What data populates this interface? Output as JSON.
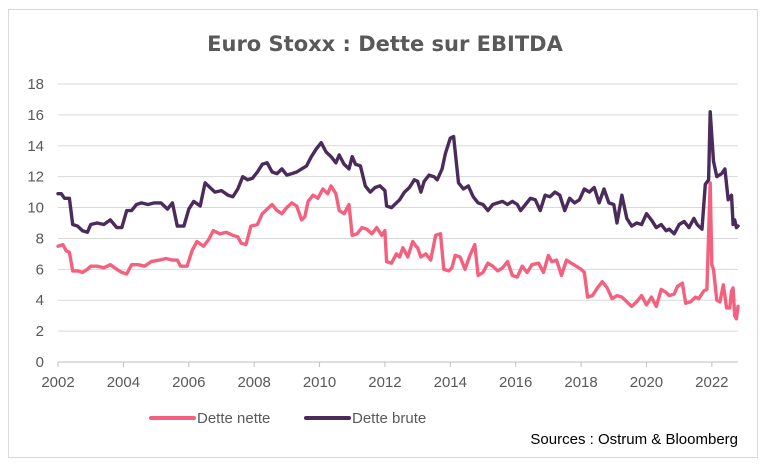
{
  "chart_data": {
    "type": "line",
    "title": "Euro Stoxx : Dette sur EBITDA",
    "xlabel": "",
    "ylabel": "",
    "xlim": [
      2002,
      2022.8
    ],
    "ylim": [
      0,
      18
    ],
    "x_ticks": [
      "2002",
      "2004",
      "2006",
      "2008",
      "2010",
      "2012",
      "2014",
      "2016",
      "2018",
      "2020",
      "2022"
    ],
    "y_ticks": [
      "0",
      "2",
      "4",
      "6",
      "8",
      "10",
      "12",
      "14",
      "16",
      "18"
    ],
    "grid": "horizontal",
    "legend_position": "bottom-left",
    "source": "Sources : Ostrum &  Bloomberg",
    "series": [
      {
        "name": "Dette nette",
        "color": "#f4617e",
        "points": [
          [
            2002.0,
            7.5
          ],
          [
            2002.15,
            7.6
          ],
          [
            2002.25,
            7.2
          ],
          [
            2002.35,
            7.1
          ],
          [
            2002.45,
            5.9
          ],
          [
            2002.6,
            5.9
          ],
          [
            2002.75,
            5.8
          ],
          [
            2002.9,
            6.0
          ],
          [
            2003.0,
            6.2
          ],
          [
            2003.2,
            6.2
          ],
          [
            2003.4,
            6.1
          ],
          [
            2003.6,
            6.3
          ],
          [
            2003.8,
            6.0
          ],
          [
            2003.95,
            5.8
          ],
          [
            2004.1,
            5.7
          ],
          [
            2004.25,
            6.3
          ],
          [
            2004.45,
            6.3
          ],
          [
            2004.65,
            6.2
          ],
          [
            2004.85,
            6.5
          ],
          [
            2005.1,
            6.6
          ],
          [
            2005.3,
            6.7
          ],
          [
            2005.5,
            6.6
          ],
          [
            2005.65,
            6.6
          ],
          [
            2005.75,
            6.2
          ],
          [
            2005.95,
            6.2
          ],
          [
            2006.1,
            7.2
          ],
          [
            2006.25,
            7.8
          ],
          [
            2006.45,
            7.5
          ],
          [
            2006.6,
            7.9
          ],
          [
            2006.75,
            8.5
          ],
          [
            2006.95,
            8.3
          ],
          [
            2007.15,
            8.4
          ],
          [
            2007.35,
            8.2
          ],
          [
            2007.5,
            8.1
          ],
          [
            2007.6,
            7.7
          ],
          [
            2007.75,
            7.6
          ],
          [
            2007.9,
            8.8
          ],
          [
            2008.1,
            8.9
          ],
          [
            2008.25,
            9.6
          ],
          [
            2008.4,
            9.9
          ],
          [
            2008.55,
            10.2
          ],
          [
            2008.7,
            9.8
          ],
          [
            2008.85,
            9.6
          ],
          [
            2009.0,
            10.0
          ],
          [
            2009.15,
            10.3
          ],
          [
            2009.3,
            10.1
          ],
          [
            2009.45,
            9.2
          ],
          [
            2009.55,
            9.4
          ],
          [
            2009.65,
            10.4
          ],
          [
            2009.8,
            10.8
          ],
          [
            2009.95,
            10.6
          ],
          [
            2010.1,
            11.2
          ],
          [
            2010.25,
            10.9
          ],
          [
            2010.35,
            11.4
          ],
          [
            2010.5,
            10.9
          ],
          [
            2010.6,
            9.8
          ],
          [
            2010.75,
            9.6
          ],
          [
            2010.9,
            10.2
          ],
          [
            2011.0,
            8.2
          ],
          [
            2011.15,
            8.3
          ],
          [
            2011.3,
            8.7
          ],
          [
            2011.45,
            8.6
          ],
          [
            2011.6,
            8.3
          ],
          [
            2011.75,
            8.7
          ],
          [
            2011.9,
            8.2
          ],
          [
            2012.0,
            8.5
          ],
          [
            2012.05,
            6.5
          ],
          [
            2012.2,
            6.4
          ],
          [
            2012.35,
            7.0
          ],
          [
            2012.45,
            6.8
          ],
          [
            2012.55,
            7.4
          ],
          [
            2012.7,
            6.8
          ],
          [
            2012.85,
            7.8
          ],
          [
            2012.95,
            7.5
          ],
          [
            2013.0,
            7.4
          ],
          [
            2013.1,
            6.8
          ],
          [
            2013.25,
            7.0
          ],
          [
            2013.4,
            6.6
          ],
          [
            2013.55,
            8.2
          ],
          [
            2013.7,
            8.3
          ],
          [
            2013.8,
            6.0
          ],
          [
            2013.95,
            5.9
          ],
          [
            2014.05,
            6.1
          ],
          [
            2014.15,
            6.9
          ],
          [
            2014.3,
            6.8
          ],
          [
            2014.45,
            6.0
          ],
          [
            2014.6,
            6.9
          ],
          [
            2014.75,
            7.6
          ],
          [
            2014.85,
            5.6
          ],
          [
            2015.0,
            5.8
          ],
          [
            2015.15,
            6.4
          ],
          [
            2015.3,
            6.2
          ],
          [
            2015.45,
            5.9
          ],
          [
            2015.6,
            6.1
          ],
          [
            2015.75,
            6.5
          ],
          [
            2015.9,
            5.6
          ],
          [
            2016.05,
            5.5
          ],
          [
            2016.2,
            6.2
          ],
          [
            2016.35,
            5.8
          ],
          [
            2016.5,
            6.3
          ],
          [
            2016.7,
            6.4
          ],
          [
            2016.85,
            5.8
          ],
          [
            2017.0,
            6.9
          ],
          [
            2017.1,
            6.5
          ],
          [
            2017.25,
            6.6
          ],
          [
            2017.4,
            5.6
          ],
          [
            2017.55,
            6.6
          ],
          [
            2017.7,
            6.4
          ],
          [
            2017.85,
            6.2
          ],
          [
            2018.0,
            6.0
          ],
          [
            2018.1,
            5.8
          ],
          [
            2018.2,
            4.2
          ],
          [
            2018.35,
            4.3
          ],
          [
            2018.5,
            4.8
          ],
          [
            2018.65,
            5.2
          ],
          [
            2018.8,
            4.8
          ],
          [
            2018.95,
            4.1
          ],
          [
            2019.1,
            4.3
          ],
          [
            2019.25,
            4.2
          ],
          [
            2019.4,
            3.9
          ],
          [
            2019.55,
            3.6
          ],
          [
            2019.7,
            3.9
          ],
          [
            2019.85,
            4.3
          ],
          [
            2020.0,
            3.7
          ],
          [
            2020.15,
            4.2
          ],
          [
            2020.3,
            3.6
          ],
          [
            2020.45,
            4.7
          ],
          [
            2020.6,
            4.5
          ],
          [
            2020.7,
            4.3
          ],
          [
            2020.85,
            4.4
          ],
          [
            2020.95,
            4.9
          ],
          [
            2021.1,
            5.1
          ],
          [
            2021.2,
            3.8
          ],
          [
            2021.35,
            3.9
          ],
          [
            2021.5,
            4.2
          ],
          [
            2021.6,
            4.1
          ],
          [
            2021.75,
            4.6
          ],
          [
            2021.85,
            4.7
          ],
          [
            2021.95,
            11.6
          ],
          [
            2022.0,
            6.3
          ],
          [
            2022.05,
            6.0
          ],
          [
            2022.15,
            4.0
          ],
          [
            2022.25,
            3.9
          ],
          [
            2022.35,
            5.0
          ],
          [
            2022.45,
            3.5
          ],
          [
            2022.55,
            3.5
          ],
          [
            2022.6,
            4.6
          ],
          [
            2022.65,
            4.8
          ],
          [
            2022.7,
            3.0
          ],
          [
            2022.75,
            2.8
          ],
          [
            2022.8,
            3.6
          ]
        ]
      },
      {
        "name": "Dette brute",
        "color": "#4b2a5c",
        "points": [
          [
            2002.0,
            10.9
          ],
          [
            2002.1,
            10.9
          ],
          [
            2002.2,
            10.6
          ],
          [
            2002.35,
            10.6
          ],
          [
            2002.45,
            8.9
          ],
          [
            2002.6,
            8.8
          ],
          [
            2002.75,
            8.5
          ],
          [
            2002.9,
            8.4
          ],
          [
            2003.0,
            8.9
          ],
          [
            2003.2,
            9.0
          ],
          [
            2003.4,
            8.9
          ],
          [
            2003.6,
            9.2
          ],
          [
            2003.8,
            8.7
          ],
          [
            2003.95,
            8.7
          ],
          [
            2004.1,
            9.8
          ],
          [
            2004.25,
            9.8
          ],
          [
            2004.4,
            10.2
          ],
          [
            2004.55,
            10.3
          ],
          [
            2004.75,
            10.2
          ],
          [
            2004.95,
            10.3
          ],
          [
            2005.15,
            10.3
          ],
          [
            2005.35,
            9.9
          ],
          [
            2005.5,
            10.3
          ],
          [
            2005.65,
            8.8
          ],
          [
            2005.85,
            8.8
          ],
          [
            2006.0,
            9.9
          ],
          [
            2006.15,
            10.4
          ],
          [
            2006.35,
            10.1
          ],
          [
            2006.5,
            11.6
          ],
          [
            2006.65,
            11.3
          ],
          [
            2006.8,
            11.0
          ],
          [
            2007.0,
            11.1
          ],
          [
            2007.2,
            10.8
          ],
          [
            2007.35,
            10.7
          ],
          [
            2007.5,
            11.2
          ],
          [
            2007.65,
            12.0
          ],
          [
            2007.8,
            11.8
          ],
          [
            2007.95,
            11.9
          ],
          [
            2008.1,
            12.3
          ],
          [
            2008.25,
            12.8
          ],
          [
            2008.4,
            12.9
          ],
          [
            2008.55,
            12.3
          ],
          [
            2008.7,
            12.2
          ],
          [
            2008.85,
            12.5
          ],
          [
            2009.0,
            12.1
          ],
          [
            2009.15,
            12.2
          ],
          [
            2009.3,
            12.3
          ],
          [
            2009.45,
            12.5
          ],
          [
            2009.6,
            12.7
          ],
          [
            2009.75,
            13.3
          ],
          [
            2009.9,
            13.8
          ],
          [
            2010.05,
            14.2
          ],
          [
            2010.2,
            13.6
          ],
          [
            2010.35,
            13.3
          ],
          [
            2010.5,
            12.9
          ],
          [
            2010.6,
            13.4
          ],
          [
            2010.75,
            12.8
          ],
          [
            2010.9,
            12.5
          ],
          [
            2011.0,
            13.3
          ],
          [
            2011.1,
            12.8
          ],
          [
            2011.25,
            12.7
          ],
          [
            2011.4,
            11.4
          ],
          [
            2011.55,
            11.0
          ],
          [
            2011.7,
            11.3
          ],
          [
            2011.85,
            11.4
          ],
          [
            2012.0,
            11.1
          ],
          [
            2012.05,
            10.1
          ],
          [
            2012.2,
            10.0
          ],
          [
            2012.3,
            10.2
          ],
          [
            2012.45,
            10.5
          ],
          [
            2012.6,
            11.0
          ],
          [
            2012.75,
            11.3
          ],
          [
            2012.9,
            11.8
          ],
          [
            2013.0,
            11.7
          ],
          [
            2013.1,
            11.0
          ],
          [
            2013.2,
            11.7
          ],
          [
            2013.35,
            12.1
          ],
          [
            2013.5,
            12.0
          ],
          [
            2013.6,
            11.8
          ],
          [
            2013.75,
            12.5
          ],
          [
            2013.85,
            13.5
          ],
          [
            2014.0,
            14.5
          ],
          [
            2014.1,
            14.6
          ],
          [
            2014.25,
            11.6
          ],
          [
            2014.4,
            11.2
          ],
          [
            2014.55,
            11.4
          ],
          [
            2014.7,
            10.7
          ],
          [
            2014.85,
            10.3
          ],
          [
            2015.0,
            10.2
          ],
          [
            2015.15,
            9.8
          ],
          [
            2015.3,
            10.2
          ],
          [
            2015.45,
            10.3
          ],
          [
            2015.6,
            10.4
          ],
          [
            2015.75,
            10.2
          ],
          [
            2015.9,
            10.4
          ],
          [
            2016.05,
            10.2
          ],
          [
            2016.15,
            9.8
          ],
          [
            2016.3,
            10.2
          ],
          [
            2016.45,
            10.6
          ],
          [
            2016.6,
            10.5
          ],
          [
            2016.75,
            9.8
          ],
          [
            2016.9,
            10.8
          ],
          [
            2017.05,
            10.7
          ],
          [
            2017.2,
            11.0
          ],
          [
            2017.35,
            10.8
          ],
          [
            2017.5,
            9.8
          ],
          [
            2017.65,
            10.6
          ],
          [
            2017.8,
            10.3
          ],
          [
            2017.95,
            10.5
          ],
          [
            2018.1,
            11.2
          ],
          [
            2018.25,
            11.0
          ],
          [
            2018.4,
            11.3
          ],
          [
            2018.55,
            10.3
          ],
          [
            2018.7,
            11.2
          ],
          [
            2018.85,
            10.3
          ],
          [
            2019.0,
            10.2
          ],
          [
            2019.1,
            9.0
          ],
          [
            2019.25,
            10.8
          ],
          [
            2019.4,
            9.3
          ],
          [
            2019.55,
            8.8
          ],
          [
            2019.7,
            9.0
          ],
          [
            2019.85,
            8.9
          ],
          [
            2020.0,
            9.6
          ],
          [
            2020.15,
            9.2
          ],
          [
            2020.3,
            8.7
          ],
          [
            2020.45,
            8.9
          ],
          [
            2020.6,
            8.5
          ],
          [
            2020.7,
            8.6
          ],
          [
            2020.85,
            8.3
          ],
          [
            2021.0,
            8.9
          ],
          [
            2021.15,
            9.1
          ],
          [
            2021.3,
            8.7
          ],
          [
            2021.45,
            9.3
          ],
          [
            2021.55,
            8.9
          ],
          [
            2021.7,
            8.6
          ],
          [
            2021.8,
            11.5
          ],
          [
            2021.9,
            11.8
          ],
          [
            2021.95,
            16.2
          ],
          [
            2022.05,
            13.0
          ],
          [
            2022.15,
            12.0
          ],
          [
            2022.3,
            12.2
          ],
          [
            2022.4,
            12.5
          ],
          [
            2022.5,
            10.5
          ],
          [
            2022.6,
            10.8
          ],
          [
            2022.65,
            8.9
          ],
          [
            2022.7,
            9.2
          ],
          [
            2022.75,
            8.7
          ],
          [
            2022.8,
            8.8
          ]
        ]
      }
    ]
  }
}
